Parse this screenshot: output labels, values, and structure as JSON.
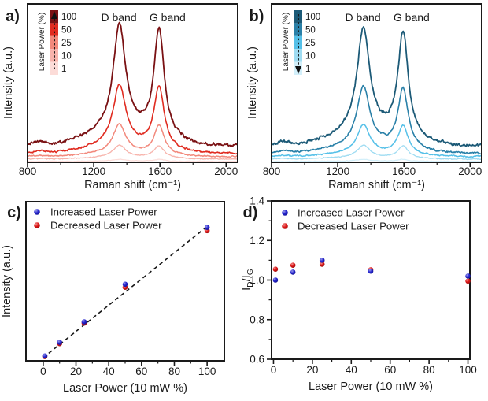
{
  "figure": {
    "background": "#ffffff",
    "frame_color": "#1a1a1a",
    "panel_labels": [
      "a)",
      "b)",
      "c)",
      "d)"
    ]
  },
  "chart_data": [
    {
      "panel": "a",
      "type": "line",
      "label": "a)",
      "xlabel": "Raman shift (cm⁻¹)",
      "ylabel": "Intensity (a.u.)",
      "xlim": [
        800,
        2070
      ],
      "xticks": [
        "800",
        "1200",
        "1600",
        "2000"
      ],
      "xtick_values": [
        800,
        1200,
        1600,
        2000
      ],
      "xminor": [
        1000,
        1400,
        1800
      ],
      "yticks": [],
      "annotations": [
        {
          "text": "D band",
          "x": 1352
        },
        {
          "text": "G band",
          "x": 1646
        }
      ],
      "legend": {
        "title": "Laser Power (%)",
        "values": [
          "100",
          "50",
          "25",
          "10",
          "1"
        ],
        "arrow": "up"
      },
      "peaks": {
        "d_center": 1355,
        "d_width": 46,
        "g_center": 1595,
        "g_width": 37,
        "g_rel": 1.0
      },
      "background_bumps": [
        {
          "center": 1480,
          "sigma": 230,
          "amp": 0.1
        },
        {
          "center": 1230,
          "sigma": 200,
          "amp": 0.07
        },
        {
          "center": 870,
          "sigma": 55,
          "amp": 0.035
        }
      ],
      "series": [
        {
          "power": "100",
          "color": "#7a1113",
          "amp": 0.775,
          "offset": 0.1,
          "noise": 0.016,
          "width": 1.8
        },
        {
          "power": "50",
          "color": "#e02b20",
          "amp": 0.44,
          "offset": 0.055,
          "noise": 0.01,
          "width": 1.6
        },
        {
          "power": "25",
          "color": "#f2897c",
          "amp": 0.207,
          "offset": 0.035,
          "noise": 0.007,
          "width": 1.5
        },
        {
          "power": "10",
          "color": "#f7b3ab",
          "amp": 0.089,
          "offset": 0.02,
          "noise": 0.005,
          "width": 1.3
        },
        {
          "power": "1",
          "color": "#fcdcd8",
          "amp": 0.013,
          "offset": 0.006,
          "noise": 0.003,
          "width": 1.2
        }
      ],
      "seed": 7
    },
    {
      "panel": "b",
      "type": "line",
      "label": "b)",
      "xlabel": "Raman shift (cm⁻¹)",
      "ylabel": "Intensity (a.u.)",
      "xlim": [
        800,
        2070
      ],
      "xticks": [
        "800",
        "1200",
        "1600",
        "2000"
      ],
      "xtick_values": [
        800,
        1200,
        1600,
        2000
      ],
      "xminor": [
        1000,
        1400,
        1800
      ],
      "yticks": [],
      "annotations": [
        {
          "text": "D band",
          "x": 1352
        },
        {
          "text": "G band",
          "x": 1646
        }
      ],
      "legend": {
        "title": "Laser Power (%)",
        "values": [
          "100",
          "50",
          "25",
          "10",
          "1"
        ],
        "arrow": "down"
      },
      "peaks": {
        "d_center": 1355,
        "d_width": 46,
        "g_center": 1595,
        "g_width": 37,
        "g_rel": 1.0
      },
      "background_bumps": [
        {
          "center": 1480,
          "sigma": 230,
          "amp": 0.1
        },
        {
          "center": 1230,
          "sigma": 200,
          "amp": 0.07
        },
        {
          "center": 870,
          "sigma": 55,
          "amp": 0.035
        }
      ],
      "series": [
        {
          "power": "100",
          "color": "#1c5a77",
          "amp": 0.755,
          "offset": 0.1,
          "noise": 0.016,
          "width": 1.8
        },
        {
          "power": "50",
          "color": "#2980a8",
          "amp": 0.43,
          "offset": 0.055,
          "noise": 0.01,
          "width": 1.6
        },
        {
          "power": "25",
          "color": "#55c0e8",
          "amp": 0.205,
          "offset": 0.035,
          "noise": 0.007,
          "width": 1.5
        },
        {
          "power": "10",
          "color": "#9fdcf2",
          "amp": 0.088,
          "offset": 0.02,
          "noise": 0.005,
          "width": 1.3
        },
        {
          "power": "1",
          "color": "#d2effa",
          "amp": 0.013,
          "offset": 0.006,
          "noise": 0.003,
          "width": 1.2
        }
      ],
      "seed": 13
    },
    {
      "panel": "c",
      "type": "scatter",
      "label": "c)",
      "xlabel": "Laser Power (10 mW %)",
      "ylabel": "Intensity (a.u.)",
      "xlim": [
        -10.5,
        110.5
      ],
      "xticks": [
        "0",
        "20",
        "40",
        "60",
        "80",
        "100"
      ],
      "xtick_values": [
        0,
        20,
        40,
        60,
        80,
        100
      ],
      "xminor": [
        10,
        30,
        50,
        70,
        90
      ],
      "ylim": [
        0,
        1
      ],
      "yticks": [],
      "series": [
        {
          "name": "Increased Laser Power",
          "color": "#2121cf",
          "x": [
            1,
            10,
            25,
            50,
            100
          ],
          "y": [
            0.031,
            0.116,
            0.245,
            0.481,
            0.838
          ]
        },
        {
          "name": "Decreased Laser Power",
          "color": "#de1414",
          "x": [
            1,
            10,
            25,
            50,
            100
          ],
          "y": [
            0.027,
            0.108,
            0.237,
            0.462,
            0.818
          ]
        }
      ],
      "fit_line": {
        "x1": 0,
        "y1": 0.02,
        "x2": 101,
        "y2": 0.852,
        "color": "#161616"
      }
    },
    {
      "panel": "d",
      "type": "scatter",
      "label": "d)",
      "xlabel": "Laser Power (10 mW %)",
      "ylabel": "I_D/I_G",
      "xlim": [
        -1,
        101
      ],
      "xticks": [
        "0",
        "20",
        "40",
        "60",
        "80",
        "100"
      ],
      "xtick_values": [
        0,
        20,
        40,
        60,
        80,
        100
      ],
      "xminor": [
        10,
        30,
        50,
        70,
        90
      ],
      "ylim": [
        0.6,
        1.4
      ],
      "yticks": [
        "0.6",
        "0.8",
        "1.0",
        "1.2",
        "1.4"
      ],
      "ytick_values": [
        0.6,
        0.8,
        1.0,
        1.2,
        1.4
      ],
      "yminor": [
        0.7,
        0.9,
        1.1,
        1.3
      ],
      "series": [
        {
          "name": "Increased Laser Power",
          "color": "#2121cf",
          "x": [
            1,
            10,
            25,
            50,
            100
          ],
          "y": [
            1.0,
            1.04,
            1.1,
            1.045,
            1.02
          ]
        },
        {
          "name": "Decreased Laser Power",
          "color": "#de1414",
          "x": [
            1,
            10,
            25,
            50,
            100
          ],
          "y": [
            1.055,
            1.075,
            1.08,
            1.052,
            0.995
          ]
        }
      ]
    }
  ]
}
